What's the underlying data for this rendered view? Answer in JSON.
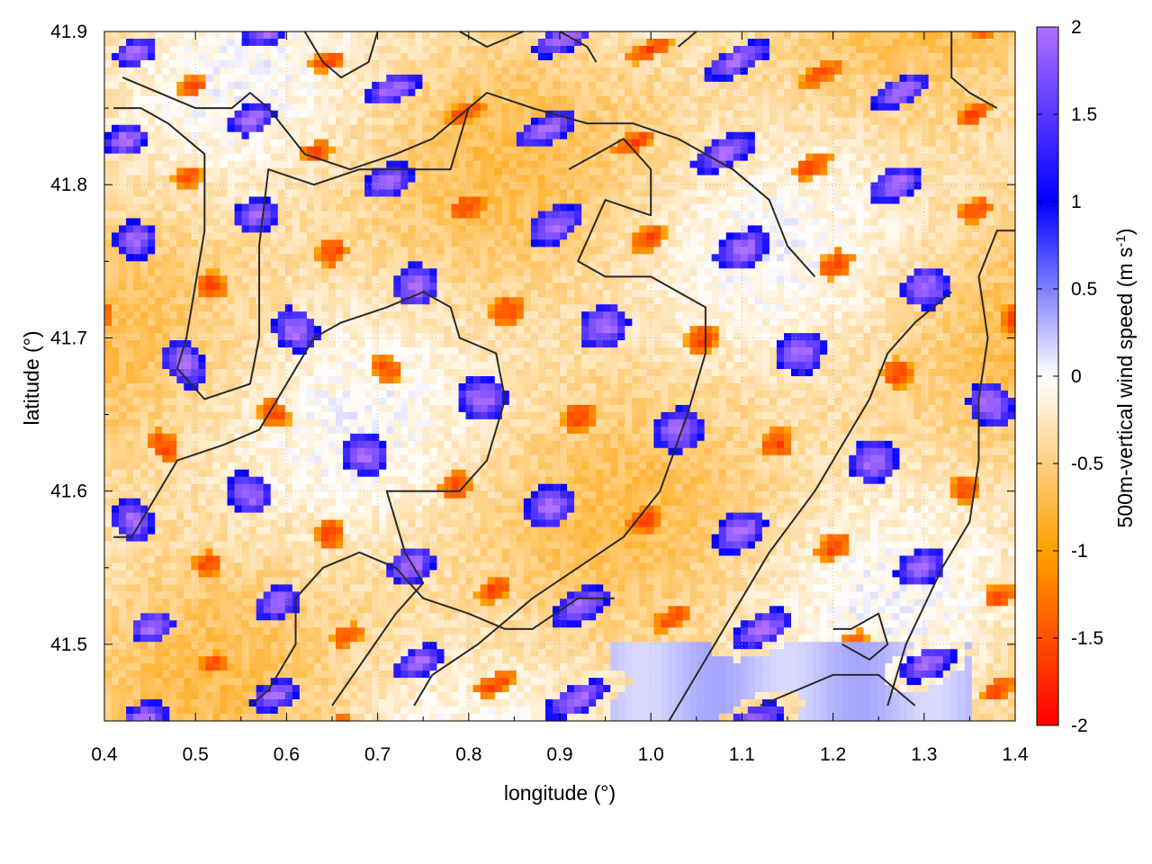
{
  "chart_data": {
    "type": "heatmap",
    "title": "",
    "xlabel": "longitude (°)",
    "ylabel": "latitude (°)",
    "colorbar_label": "500m-vertical wind speed (m s",
    "colorbar_label_exp": "-1",
    "colorbar_label_close": ")",
    "xlim": [
      0.4,
      1.4
    ],
    "ylim": [
      41.45,
      41.9
    ],
    "x_ticks": [
      "0.4",
      "0.5",
      "0.6",
      "0.7",
      "0.8",
      "0.9",
      "1.0",
      "1.1",
      "1.2",
      "1.3",
      "1.4"
    ],
    "y_ticks": [
      "41.5",
      "41.6",
      "41.7",
      "41.8",
      "41.9"
    ],
    "y_tick_values": [
      41.5,
      41.6,
      41.7,
      41.8,
      41.9
    ],
    "colorbar_range": [
      -2,
      2
    ],
    "colorbar_ticks": [
      "2",
      "1.5",
      "1",
      "0.5",
      "0",
      "-0.5",
      "-1",
      "-1.5",
      "-2"
    ],
    "colorbar_tick_values": [
      2,
      1.5,
      1,
      0.5,
      0,
      -0.5,
      -1,
      -1.5,
      -2
    ],
    "colormap": [
      {
        "v": -2,
        "color": "#ff0000"
      },
      {
        "v": -1,
        "color": "#ffa000"
      },
      {
        "v": 0,
        "color": "#ffffff"
      },
      {
        "v": 1,
        "color": "#0000ff"
      },
      {
        "v": 2,
        "color": "#b070ff"
      }
    ],
    "grid": true,
    "contours": [
      [
        [
          0.42,
          41.87
        ],
        [
          0.46,
          41.86
        ],
        [
          0.5,
          41.85
        ],
        [
          0.54,
          41.85
        ],
        [
          0.56,
          41.86
        ],
        [
          0.58,
          41.85
        ],
        [
          0.62,
          41.82
        ],
        [
          0.67,
          41.81
        ],
        [
          0.72,
          41.82
        ],
        [
          0.76,
          41.83
        ],
        [
          0.8,
          41.85
        ]
      ],
      [
        [
          0.62,
          41.9
        ],
        [
          0.64,
          41.88
        ],
        [
          0.66,
          41.87
        ],
        [
          0.69,
          41.88
        ],
        [
          0.7,
          41.9
        ]
      ],
      [
        [
          0.79,
          41.9
        ],
        [
          0.82,
          41.89
        ],
        [
          0.86,
          41.9
        ]
      ],
      [
        [
          0.9,
          41.9
        ],
        [
          0.93,
          41.89
        ],
        [
          0.94,
          41.88
        ]
      ],
      [
        [
          1.03,
          41.89
        ],
        [
          1.05,
          41.9
        ]
      ],
      [
        [
          0.41,
          41.85
        ],
        [
          0.44,
          41.85
        ],
        [
          0.47,
          41.84
        ],
        [
          0.51,
          41.82
        ],
        [
          0.51,
          41.77
        ],
        [
          0.49,
          41.7
        ],
        [
          0.48,
          41.68
        ],
        [
          0.51,
          41.66
        ],
        [
          0.56,
          41.67
        ],
        [
          0.57,
          41.7
        ],
        [
          0.57,
          41.76
        ],
        [
          0.58,
          41.81
        ],
        [
          0.63,
          41.8
        ],
        [
          0.68,
          41.81
        ],
        [
          0.78,
          41.81
        ],
        [
          0.8,
          41.85
        ],
        [
          0.82,
          41.86
        ],
        [
          0.87,
          41.85
        ],
        [
          0.93,
          41.84
        ],
        [
          0.98,
          41.84
        ],
        [
          1.03,
          41.83
        ],
        [
          1.09,
          41.81
        ],
        [
          1.13,
          41.79
        ],
        [
          1.15,
          41.76
        ],
        [
          1.18,
          41.74
        ]
      ],
      [
        [
          0.41,
          41.57
        ],
        [
          0.43,
          41.57
        ],
        [
          0.46,
          41.6
        ],
        [
          0.48,
          41.62
        ],
        [
          0.53,
          41.63
        ],
        [
          0.57,
          41.64
        ],
        [
          0.6,
          41.67
        ],
        [
          0.63,
          41.7
        ],
        [
          0.66,
          41.71
        ],
        [
          0.71,
          41.72
        ],
        [
          0.75,
          41.73
        ],
        [
          0.78,
          41.72
        ],
        [
          0.79,
          41.7
        ],
        [
          0.83,
          41.69
        ],
        [
          0.84,
          41.66
        ],
        [
          0.82,
          41.62
        ],
        [
          0.79,
          41.6
        ],
        [
          0.71,
          41.6
        ],
        [
          0.73,
          41.56
        ],
        [
          0.75,
          41.54
        ],
        [
          0.72,
          41.52
        ],
        [
          0.65,
          41.46
        ]
      ],
      [
        [
          0.91,
          41.81
        ],
        [
          0.94,
          41.82
        ],
        [
          0.97,
          41.83
        ],
        [
          1,
          41.81
        ],
        [
          1,
          41.78
        ],
        [
          0.95,
          41.79
        ],
        [
          0.92,
          41.75
        ],
        [
          0.95,
          41.74
        ],
        [
          1,
          41.74
        ],
        [
          1.03,
          41.73
        ],
        [
          1.06,
          41.72
        ],
        [
          1.06,
          41.69
        ],
        [
          1.04,
          41.65
        ],
        [
          1.01,
          41.6
        ],
        [
          0.97,
          41.57
        ],
        [
          0.92,
          41.55
        ],
        [
          0.87,
          41.53
        ],
        [
          0.81,
          41.5
        ],
        [
          0.76,
          41.48
        ],
        [
          0.74,
          41.46
        ]
      ],
      [
        [
          1.26,
          41.46
        ],
        [
          1.28,
          41.5
        ],
        [
          1.32,
          41.55
        ],
        [
          1.35,
          41.58
        ],
        [
          1.36,
          41.62
        ],
        [
          1.36,
          41.66
        ],
        [
          1.37,
          41.7
        ],
        [
          1.36,
          41.74
        ],
        [
          1.38,
          41.77
        ],
        [
          1.4,
          41.77
        ]
      ],
      [
        [
          1.02,
          41.45
        ],
        [
          1.05,
          41.48
        ],
        [
          1.09,
          41.52
        ],
        [
          1.13,
          41.56
        ],
        [
          1.18,
          41.6
        ],
        [
          1.2,
          41.62
        ],
        [
          1.22,
          41.64
        ],
        [
          1.24,
          41.66
        ],
        [
          1.26,
          41.69
        ],
        [
          1.29,
          41.71
        ],
        [
          1.33,
          41.73
        ]
      ],
      [
        [
          1.2,
          41.51
        ],
        [
          1.22,
          41.51
        ],
        [
          1.25,
          41.52
        ],
        [
          1.26,
          41.5
        ],
        [
          1.24,
          41.49
        ],
        [
          1.21,
          41.5
        ]
      ],
      [
        [
          1.12,
          41.46
        ],
        [
          1.16,
          41.47
        ],
        [
          1.2,
          41.48
        ],
        [
          1.25,
          41.48
        ],
        [
          1.29,
          41.46
        ]
      ],
      [
        [
          1.38,
          41.85
        ],
        [
          1.35,
          41.86
        ],
        [
          1.33,
          41.87
        ],
        [
          1.33,
          41.9
        ]
      ],
      [
        [
          0.56,
          41.46
        ],
        [
          0.58,
          41.47
        ],
        [
          0.61,
          41.5
        ],
        [
          0.61,
          41.53
        ],
        [
          0.64,
          41.55
        ],
        [
          0.68,
          41.56
        ],
        [
          0.72,
          41.55
        ],
        [
          0.75,
          41.53
        ],
        [
          0.8,
          41.52
        ],
        [
          0.84,
          41.51
        ],
        [
          0.87,
          41.51
        ],
        [
          0.92,
          41.53
        ],
        [
          0.96,
          41.53
        ]
      ]
    ]
  }
}
